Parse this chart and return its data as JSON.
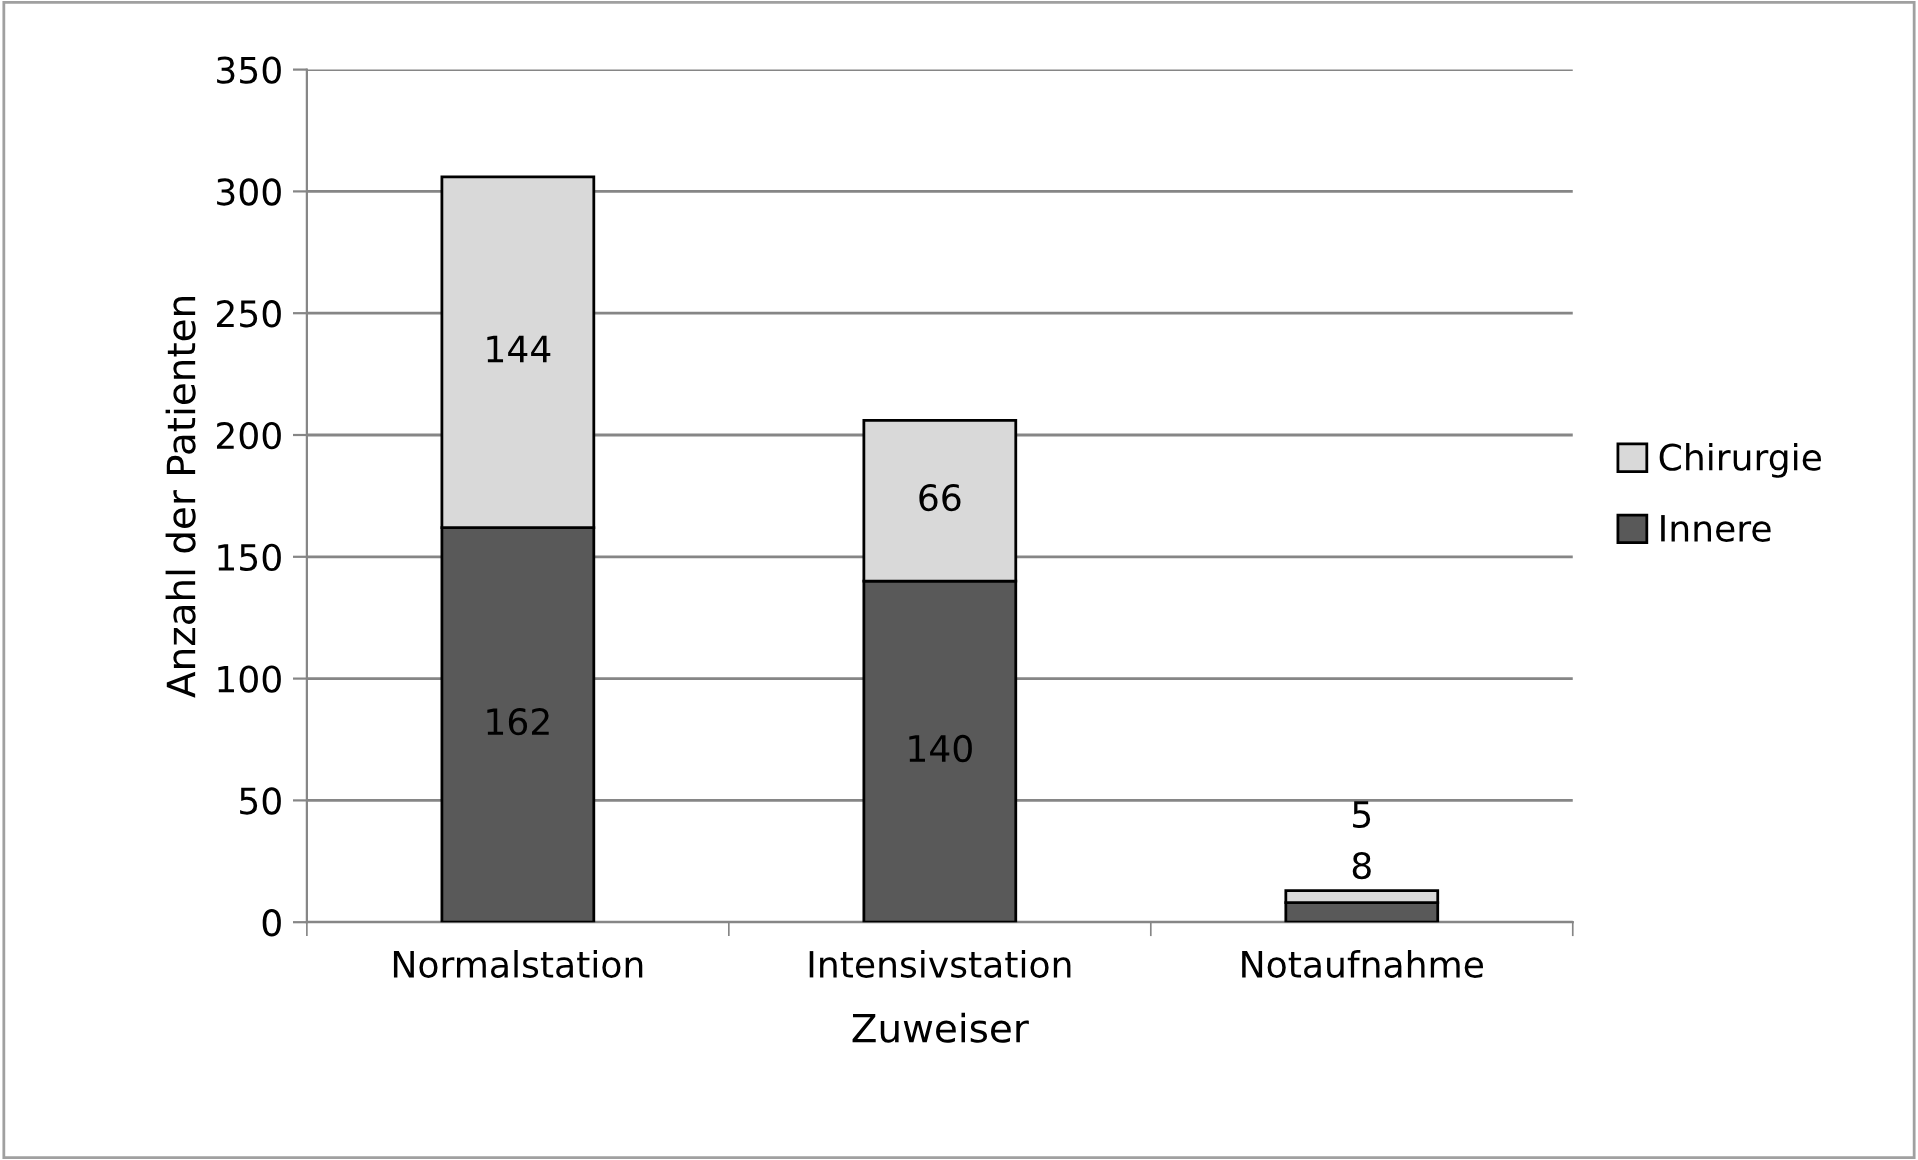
{
  "chart_data": {
    "type": "bar",
    "stacked": true,
    "xlabel": "Zuweiser",
    "ylabel": "Anzahl der Patienten",
    "categories": [
      "Normalstation",
      "Intensivstation",
      "Notaufnahme"
    ],
    "series": [
      {
        "name": "Innere",
        "color": "#595959",
        "values": [
          162,
          140,
          8
        ]
      },
      {
        "name": "Chirurgie",
        "color": "#d9d9d9",
        "values": [
          144,
          66,
          5
        ]
      }
    ],
    "ylim": [
      0,
      350
    ],
    "yticks": [
      0,
      50,
      100,
      150,
      200,
      250,
      300,
      350
    ],
    "grid": "y",
    "legend": "right",
    "data_labels": true
  }
}
